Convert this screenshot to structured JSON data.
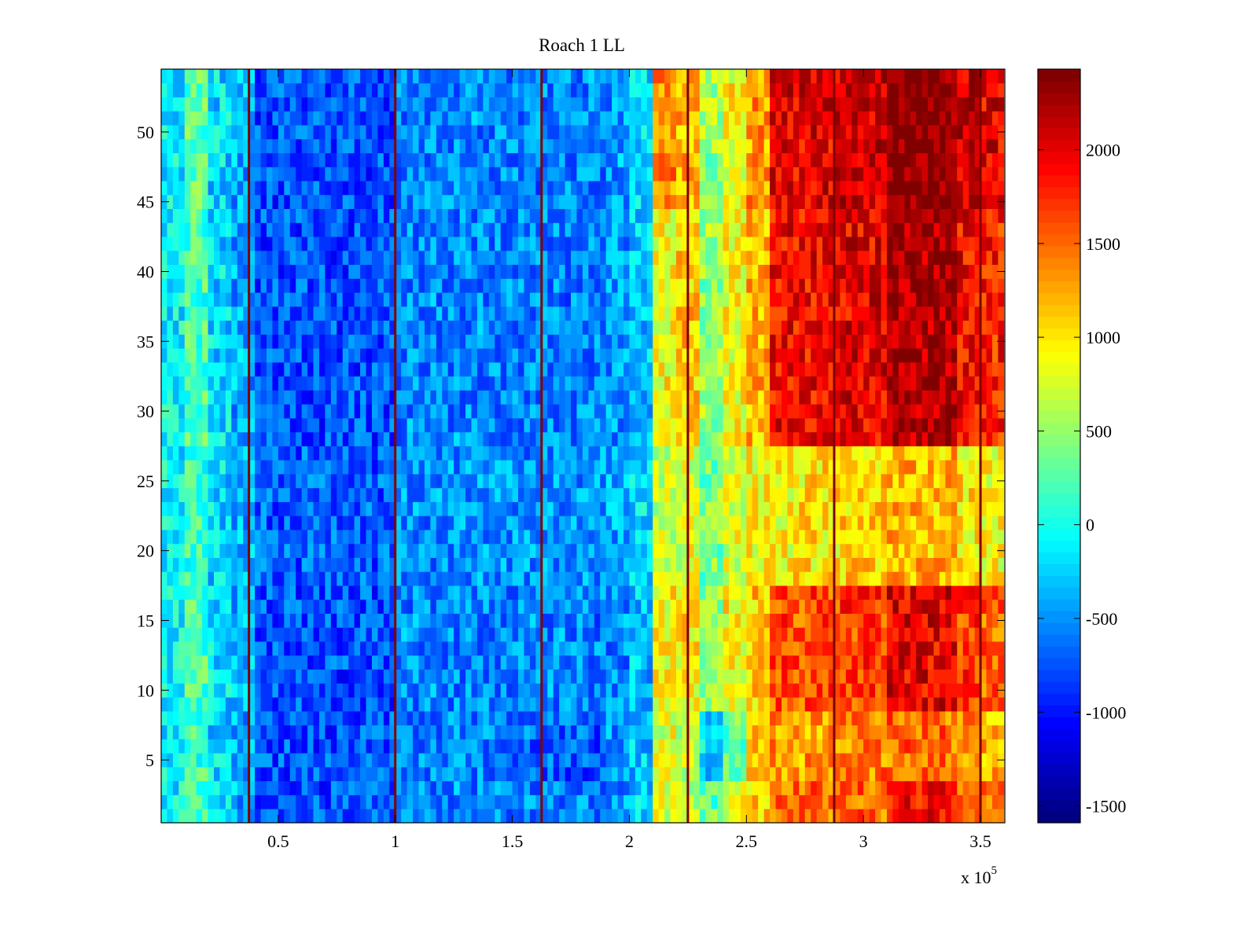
{
  "chart_data": {
    "type": "heatmap",
    "title": "Roach 1 LL",
    "xlabel": "",
    "ylabel": "",
    "x_multiplier_label": "x 10",
    "x_multiplier_exponent": "5",
    "xlim": [
      0,
      3.604
    ],
    "ylim": [
      0.5,
      54.5
    ],
    "xticks": [
      "0.5",
      "1",
      "1.5",
      "2",
      "2.5",
      "3",
      "3.5"
    ],
    "xtick_values": [
      0.5,
      1,
      1.5,
      2,
      2.5,
      3,
      3.5
    ],
    "yticks": [
      "5",
      "10",
      "15",
      "20",
      "25",
      "30",
      "35",
      "40",
      "45",
      "50"
    ],
    "ytick_values": [
      5,
      10,
      15,
      20,
      25,
      30,
      35,
      40,
      45,
      50
    ],
    "x_units_note": "x values in units of 1e5",
    "x_band_width": 0.1,
    "colormap": "jet",
    "clim": [
      -1590,
      2430
    ],
    "colorbar_ticks": [
      "-1500",
      "-1000",
      "-500",
      "0",
      "500",
      "1000",
      "1500",
      "2000"
    ],
    "colorbar_tick_values": [
      -1500,
      -1000,
      -500,
      0,
      500,
      1000,
      1500,
      2000
    ],
    "vertical_line_x": [
      0.375,
      1.0,
      1.625,
      2.25,
      2.875,
      3.5
    ],
    "vertical_line_value": 2400,
    "row_bands": [
      {
        "rows": [
          1,
          3
        ],
        "values": [
          -100,
          150,
          -200,
          -400,
          -750,
          -750,
          -750,
          -750,
          -750,
          -750,
          -550,
          -550,
          -550,
          -550,
          -550,
          -550,
          -550,
          -550,
          -550,
          -500,
          -300,
          800,
          700,
          300,
          800,
          1100,
          1500,
          1500,
          1500,
          1500,
          1500,
          1900,
          1900,
          1900,
          1500,
          1500
        ]
      },
      {
        "rows": [
          4,
          8
        ],
        "values": [
          -100,
          150,
          -200,
          -400,
          -750,
          -750,
          -750,
          -750,
          -750,
          -750,
          -550,
          -550,
          -550,
          -550,
          -550,
          -650,
          -650,
          -700,
          -750,
          -500,
          -300,
          800,
          600,
          -200,
          300,
          1100,
          1300,
          1300,
          1300,
          1400,
          1400,
          1500,
          1500,
          1500,
          1300,
          1200
        ]
      },
      {
        "rows": [
          9,
          17
        ],
        "values": [
          -50,
          200,
          -200,
          -400,
          -750,
          -750,
          -750,
          -750,
          -750,
          -750,
          -550,
          -550,
          -550,
          -550,
          -550,
          -550,
          -550,
          -550,
          -550,
          -500,
          -300,
          900,
          1000,
          500,
          900,
          1100,
          1600,
          1600,
          1600,
          1700,
          1700,
          2000,
          2000,
          2000,
          1700,
          1500
        ]
      },
      {
        "rows": [
          18,
          27
        ],
        "values": [
          -100,
          150,
          -200,
          -400,
          -700,
          -700,
          -700,
          -700,
          -700,
          -700,
          -500,
          -500,
          -500,
          -500,
          -500,
          -500,
          -500,
          -500,
          -500,
          -400,
          -200,
          700,
          800,
          400,
          800,
          900,
          900,
          1000,
          1000,
          1100,
          1100,
          1200,
          1200,
          1200,
          1000,
          900
        ]
      },
      {
        "rows": [
          28,
          44
        ],
        "values": [
          -100,
          200,
          -200,
          -400,
          -750,
          -750,
          -750,
          -750,
          -750,
          -750,
          -550,
          -550,
          -550,
          -550,
          -550,
          -550,
          -550,
          -550,
          -550,
          -500,
          -300,
          900,
          1100,
          500,
          900,
          1200,
          1900,
          1900,
          1900,
          2000,
          2000,
          2250,
          2250,
          2250,
          1900,
          1800
        ]
      },
      {
        "rows": [
          45,
          54
        ],
        "values": [
          -100,
          250,
          -200,
          -400,
          -750,
          -750,
          -750,
          -750,
          -750,
          -750,
          -550,
          -550,
          -550,
          -550,
          -550,
          -550,
          -550,
          -550,
          -550,
          -450,
          -200,
          1400,
          1200,
          500,
          900,
          1300,
          2000,
          2000,
          2000,
          2100,
          2100,
          2400,
          2400,
          2400,
          2100,
          2000
        ]
      }
    ]
  }
}
